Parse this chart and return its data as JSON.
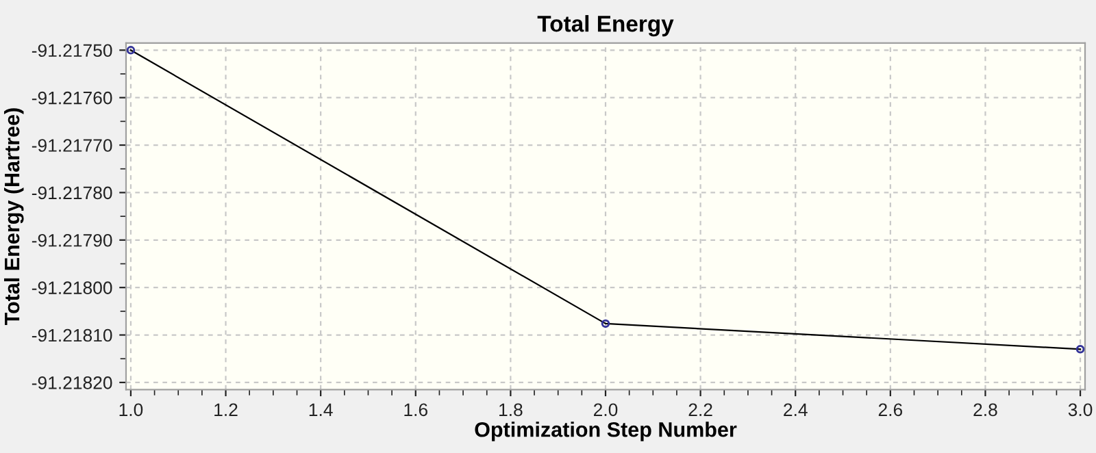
{
  "chart_data": {
    "type": "line",
    "title": "Total Energy",
    "xlabel": "Optimization Step Number",
    "ylabel": "Total Energy (Hartree)",
    "x": [
      1,
      2,
      3
    ],
    "series": [
      {
        "color": "#000000",
        "values": [
          -91.2175,
          -91.218076,
          -91.21813
        ]
      }
    ],
    "marker": "circle",
    "line_style": "solid",
    "grid": true,
    "legend": false,
    "xlim": [
      0.99,
      3.01
    ],
    "ylim": [
      -91.218215,
      -91.217485
    ],
    "xticks": [
      {
        "value": 1.0,
        "label": "1.0"
      },
      {
        "value": 1.2,
        "label": "1.2"
      },
      {
        "value": 1.4,
        "label": "1.4"
      },
      {
        "value": 1.6,
        "label": "1.6"
      },
      {
        "value": 1.8,
        "label": "1.8"
      },
      {
        "value": 2.0,
        "label": "2.0"
      },
      {
        "value": 2.2,
        "label": "2.2"
      },
      {
        "value": 2.4,
        "label": "2.4"
      },
      {
        "value": 2.6,
        "label": "2.6"
      },
      {
        "value": 2.8,
        "label": "2.8"
      },
      {
        "value": 3.0,
        "label": "3.0"
      }
    ],
    "yticks": [
      {
        "value": -91.2175,
        "label": "-91.21750"
      },
      {
        "value": -91.2176,
        "label": "-91.21760"
      },
      {
        "value": -91.2177,
        "label": "-91.21770"
      },
      {
        "value": -91.2178,
        "label": "-91.21780"
      },
      {
        "value": -91.2179,
        "label": "-91.21790"
      },
      {
        "value": -91.218,
        "label": "-91.21800"
      },
      {
        "value": -91.2181,
        "label": "-91.21810"
      },
      {
        "value": -91.2182,
        "label": "-91.21820"
      }
    ]
  }
}
